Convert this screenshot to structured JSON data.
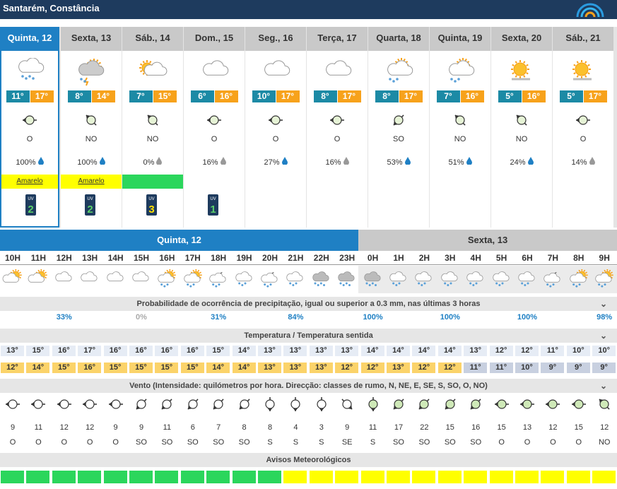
{
  "location": "Santarém, Constância",
  "colors": {
    "header": "#1e3b5e",
    "accent": "#1f80c4",
    "min_temp": "#1c8aa5",
    "max_temp": "#f7a21b",
    "warn_yellow": "#ffff00",
    "warn_green": "#2bd65c",
    "rain_blue": "#1f80c4"
  },
  "days": [
    {
      "label": "Quinta, 12",
      "icon": "rain-cloud-icon",
      "tmin": "11°",
      "tmax": "17°",
      "wind": "O",
      "prec": "100%",
      "drop": "blue",
      "warning": "Amarelo",
      "warning_color": "yellow",
      "uv": "2"
    },
    {
      "label": "Sexta, 13",
      "icon": "storm-sun-cloud-icon",
      "tmin": "8°",
      "tmax": "14°",
      "wind": "NO",
      "prec": "100%",
      "drop": "blue",
      "warning": "Amarelo",
      "warning_color": "yellow",
      "uv": "2"
    },
    {
      "label": "Sáb., 14",
      "icon": "sun-cloud-icon",
      "tmin": "7°",
      "tmax": "15°",
      "wind": "NO",
      "prec": "0%",
      "drop": "gray",
      "warning": "",
      "warning_color": "green",
      "uv": "3"
    },
    {
      "label": "Dom., 15",
      "icon": "cloud-icon",
      "tmin": "6°",
      "tmax": "16°",
      "wind": "O",
      "prec": "16%",
      "drop": "gray",
      "warning": "",
      "warning_color": "none",
      "uv": "1"
    },
    {
      "label": "Seg., 16",
      "icon": "cloud-icon",
      "tmin": "10°",
      "tmax": "17°",
      "wind": "O",
      "prec": "27%",
      "drop": "blue",
      "warning": "",
      "warning_color": "none",
      "uv": ""
    },
    {
      "label": "Terça, 17",
      "icon": "cloud-icon",
      "tmin": "8°",
      "tmax": "17°",
      "wind": "O",
      "prec": "16%",
      "drop": "gray",
      "warning": "",
      "warning_color": "none",
      "uv": ""
    },
    {
      "label": "Quarta, 18",
      "icon": "sun-cloud-rain-icon",
      "tmin": "8°",
      "tmax": "17°",
      "wind": "SO",
      "prec": "53%",
      "drop": "blue",
      "warning": "",
      "warning_color": "none",
      "uv": ""
    },
    {
      "label": "Quinta, 19",
      "icon": "sun-cloud-rain-icon",
      "tmin": "7°",
      "tmax": "16°",
      "wind": "NO",
      "prec": "51%",
      "drop": "blue",
      "warning": "",
      "warning_color": "none",
      "uv": ""
    },
    {
      "label": "Sexta, 20",
      "icon": "sun-icon",
      "tmin": "5°",
      "tmax": "16°",
      "wind": "NO",
      "prec": "24%",
      "drop": "blue",
      "warning": "",
      "warning_color": "none",
      "uv": ""
    },
    {
      "label": "Sáb., 21",
      "icon": "sun-icon",
      "tmin": "5°",
      "tmax": "17°",
      "wind": "O",
      "prec": "14%",
      "drop": "gray",
      "warning": "",
      "warning_color": "none",
      "uv": ""
    }
  ],
  "hourly": {
    "band1": "Quinta, 12",
    "band2": "Sexta, 13",
    "hours": [
      "10H",
      "11H",
      "12H",
      "13H",
      "14H",
      "15H",
      "16H",
      "17H",
      "18H",
      "19H",
      "20H",
      "21H",
      "22H",
      "23H",
      "0H",
      "1H",
      "2H",
      "3H",
      "4H",
      "5H",
      "6H",
      "7H",
      "8H",
      "9H"
    ],
    "icons": [
      "sun-cloud",
      "sun-cloud",
      "cloud",
      "cloud",
      "cloud",
      "cloud",
      "sun-cloud-rain",
      "sun-cloud-rain",
      "moon-cloud-rain",
      "cloud-rain",
      "moon-cloud-rain",
      "cloud-rain",
      "cloud-heavy-rain",
      "cloud-heavy-rain",
      "cloud-heavy-rain",
      "cloud-rain",
      "cloud-rain",
      "cloud-rain",
      "cloud-rain",
      "cloud-rain",
      "cloud-rain",
      "moon-cloud-rain",
      "sun-cloud-rain",
      "sun-cloud-rain"
    ],
    "precip_title": "Probabilidade de ocorrência de precipitação, igual ou superior a 0.3 mm, nas últimas 3 horas",
    "precip": [
      {
        "pos": 2,
        "v": "33%",
        "c": "blue"
      },
      {
        "pos": 5,
        "v": "0%",
        "c": "gray"
      },
      {
        "pos": 8,
        "v": "31%",
        "c": "blue"
      },
      {
        "pos": 11,
        "v": "84%",
        "c": "blue"
      },
      {
        "pos": 14,
        "v": "100%",
        "c": "blue"
      },
      {
        "pos": 17,
        "v": "100%",
        "c": "blue"
      },
      {
        "pos": 20,
        "v": "100%",
        "c": "blue"
      },
      {
        "pos": 23,
        "v": "98%",
        "c": "blue"
      }
    ],
    "temp_title": "Temperatura / Temperatura sentida",
    "temp": [
      "13°",
      "15°",
      "16°",
      "17°",
      "16°",
      "16°",
      "16°",
      "16°",
      "15°",
      "14°",
      "13°",
      "13°",
      "13°",
      "13°",
      "14°",
      "14°",
      "14°",
      "14°",
      "13°",
      "12°",
      "12°",
      "11°",
      "10°",
      "10°"
    ],
    "feel": [
      "12°",
      "14°",
      "15°",
      "16°",
      "15°",
      "15°",
      "15°",
      "15°",
      "14°",
      "14°",
      "13°",
      "13°",
      "13°",
      "12°",
      "12°",
      "13°",
      "12°",
      "12°",
      "11°",
      "11°",
      "10°",
      "9°",
      "9°",
      "9°"
    ],
    "wind_title": "Vento (Intensidade: quilómetros por hora. Direcção: classes de rumo, N, NE, E, SE, S, SO, O, NO)",
    "wind_speed": [
      "9",
      "11",
      "12",
      "12",
      "9",
      "9",
      "11",
      "6",
      "7",
      "8",
      "8",
      "4",
      "3",
      "9",
      "11",
      "17",
      "22",
      "15",
      "16",
      "15",
      "13",
      "12",
      "15",
      "12"
    ],
    "wind_dir": [
      "O",
      "O",
      "O",
      "O",
      "O",
      "SO",
      "SO",
      "SO",
      "SO",
      "SO",
      "S",
      "S",
      "S",
      "SE",
      "S",
      "SO",
      "SO",
      "SO",
      "SO",
      "O",
      "O",
      "O",
      "O",
      "NO"
    ],
    "warn_title": "Avisos Meteorológicos",
    "warn": [
      "green",
      "green",
      "green",
      "green",
      "green",
      "green",
      "green",
      "green",
      "green",
      "green",
      "green",
      "yellow",
      "yellow",
      "yellow",
      "yellow",
      "yellow",
      "yellow",
      "yellow",
      "yellow",
      "yellow",
      "yellow",
      "yellow",
      "yellow",
      "yellow"
    ]
  }
}
